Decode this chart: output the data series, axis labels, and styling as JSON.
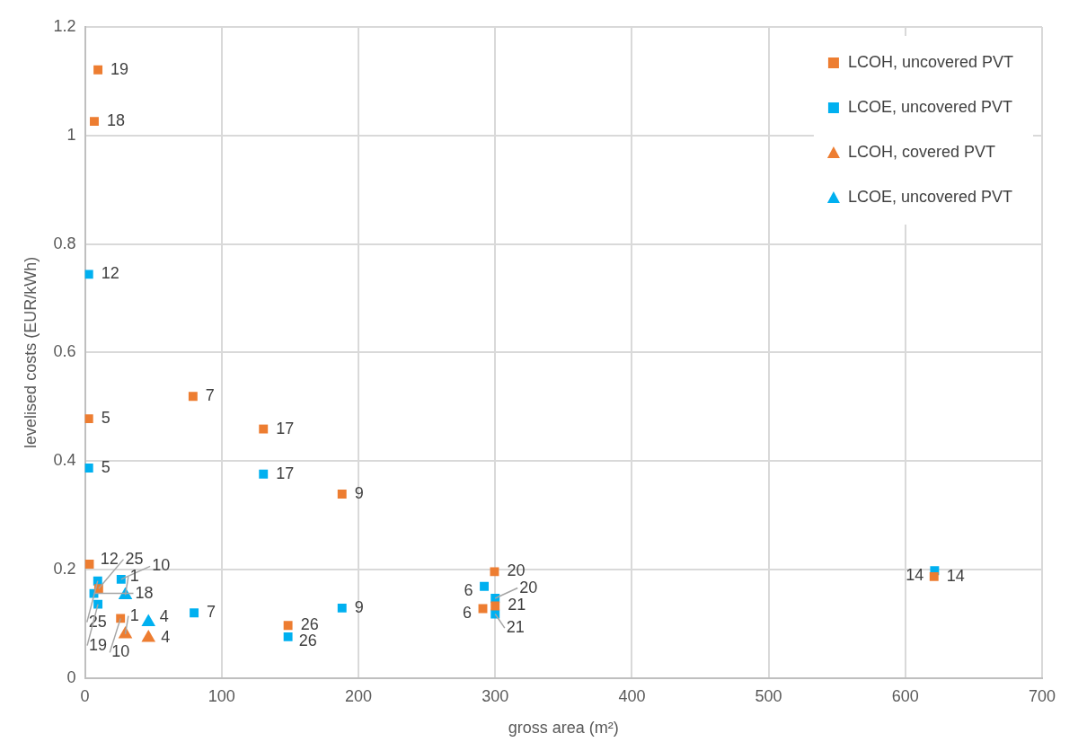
{
  "chart_data": {
    "type": "scatter",
    "xlabel": "gross area (m²)",
    "ylabel": "levelised costs (EUR/kWh)",
    "xlim": [
      0,
      700
    ],
    "xticks": [
      0,
      100,
      200,
      300,
      400,
      500,
      600,
      700
    ],
    "ylim": [
      0,
      1.2
    ],
    "yticks": [
      0,
      0.2,
      0.4,
      0.6,
      0.8,
      1,
      1.2
    ],
    "grid": true,
    "legend": "top right",
    "series": [
      {
        "name": "LCOH, uncovered PVT",
        "color": "#ed7d31",
        "marker": "square",
        "x": [
          9.5,
          6.8,
          79,
          2.7,
          130.5,
          188,
          3.2,
          26,
          10,
          148.5,
          299.5,
          291,
          300,
          621
        ],
        "values": [
          1.121,
          1.026,
          0.519,
          0.478,
          0.459,
          0.339,
          0.21,
          0.11,
          0.165,
          0.097,
          0.196,
          0.128,
          0.133,
          0.187
        ]
      },
      {
        "name": "LCOE, uncovered PVT",
        "color": "#00b0f0",
        "marker": "square",
        "x": [
          2.7,
          2.7,
          130.5,
          188,
          148.5,
          292,
          300,
          300,
          621.4,
          9.3,
          6.5,
          9.5,
          26.4,
          79.8
        ],
        "values": [
          0.744,
          0.387,
          0.376,
          0.129,
          0.076,
          0.169,
          0.147,
          0.118,
          0.198,
          0.179,
          0.156,
          0.136,
          0.182,
          0.12
        ]
      },
      {
        "name": "LCOH, covered PVT",
        "color": "#ed7d31",
        "marker": "triangle",
        "x": [
          29.5,
          46.4
        ],
        "values": [
          0.081,
          0.074
        ]
      },
      {
        "name": "LCOE, uncovered PVT",
        "color": "#00b0f0",
        "marker": "triangle",
        "x": [
          29.5,
          46.4
        ],
        "values": [
          0.153,
          0.103
        ]
      }
    ],
    "annotations": [
      {
        "text": "19",
        "x": 9.5,
        "y": 1.121
      },
      {
        "text": "18",
        "x": 6.8,
        "y": 1.026
      },
      {
        "text": "7",
        "x": 79,
        "y": 0.519
      },
      {
        "text": "5",
        "x": 2.7,
        "y": 0.478
      },
      {
        "text": "17",
        "x": 130.5,
        "y": 0.459
      },
      {
        "text": "9",
        "x": 188,
        "y": 0.339
      },
      {
        "text": "12",
        "x": 3.2,
        "y": 0.21
      },
      {
        "text": "10",
        "x": 26,
        "y": 0.11
      },
      {
        "text": "25",
        "x": 10,
        "y": 0.165
      },
      {
        "text": "26",
        "x": 148.5,
        "y": 0.097
      },
      {
        "text": "20",
        "x": 299.5,
        "y": 0.196
      },
      {
        "text": "6",
        "x": 291,
        "y": 0.128
      },
      {
        "text": "21",
        "x": 300,
        "y": 0.133
      },
      {
        "text": "14",
        "x": 621,
        "y": 0.187
      },
      {
        "text": "12",
        "x": 2.7,
        "y": 0.744
      },
      {
        "text": "5",
        "x": 2.7,
        "y": 0.387
      },
      {
        "text": "17",
        "x": 130.5,
        "y": 0.376
      },
      {
        "text": "9",
        "x": 188,
        "y": 0.129
      },
      {
        "text": "26",
        "x": 148.5,
        "y": 0.076
      },
      {
        "text": "6",
        "x": 292,
        "y": 0.169
      },
      {
        "text": "20",
        "x": 300,
        "y": 0.147
      },
      {
        "text": "21",
        "x": 300,
        "y": 0.118
      },
      {
        "text": "14",
        "x": 621.4,
        "y": 0.198
      },
      {
        "text": "25",
        "x": 9.3,
        "y": 0.179
      },
      {
        "text": "18",
        "x": 6.5,
        "y": 0.156
      },
      {
        "text": "19",
        "x": 9.5,
        "y": 0.136
      },
      {
        "text": "10",
        "x": 26.4,
        "y": 0.182
      },
      {
        "text": "7",
        "x": 79.8,
        "y": 0.12
      },
      {
        "text": "1",
        "x": 29.5,
        "y": 0.081
      },
      {
        "text": "4",
        "x": 46.4,
        "y": 0.074
      },
      {
        "text": "1",
        "x": 29.5,
        "y": 0.153
      },
      {
        "text": "4",
        "x": 46.4,
        "y": 0.103
      }
    ]
  }
}
